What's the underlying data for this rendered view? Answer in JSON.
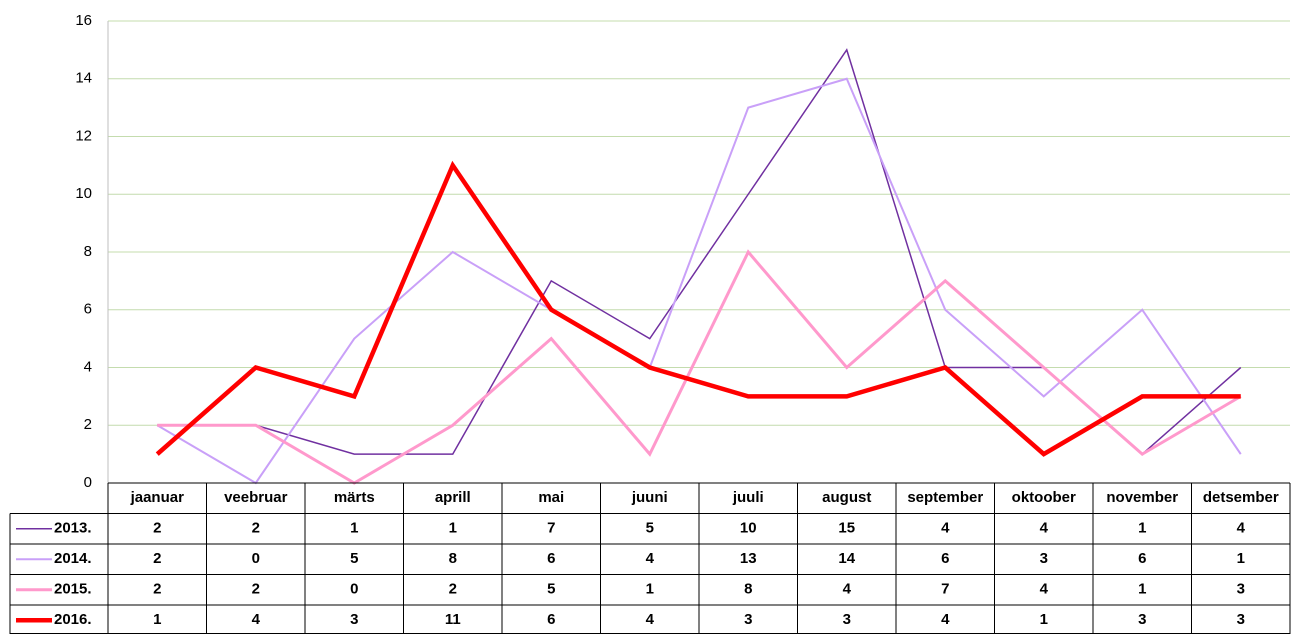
{
  "chart_data": {
    "type": "line",
    "categories": [
      "jaanuar",
      "veebruar",
      "märts",
      "aprill",
      "mai",
      "juuni",
      "juuli",
      "august",
      "september",
      "oktoober",
      "november",
      "detsember"
    ],
    "series": [
      {
        "name": "2013.",
        "color": "#7030a0",
        "line_width": 1.5,
        "values": [
          2,
          2,
          1,
          1,
          7,
          5,
          10,
          15,
          4,
          4,
          1,
          4
        ]
      },
      {
        "name": "2014.",
        "color": "#c9a0f8",
        "line_width": 2,
        "values": [
          2,
          0,
          5,
          8,
          6,
          4,
          13,
          14,
          6,
          3,
          6,
          1
        ]
      },
      {
        "name": "2015.",
        "color": "#ff99cc",
        "line_width": 3,
        "values": [
          2,
          2,
          0,
          2,
          5,
          1,
          8,
          4,
          7,
          4,
          1,
          3
        ]
      },
      {
        "name": "2016.",
        "color": "#ff0000",
        "line_width": 4.5,
        "values": [
          1,
          4,
          3,
          11,
          6,
          4,
          3,
          3,
          4,
          1,
          3,
          3
        ]
      }
    ],
    "ylim": [
      0,
      16
    ],
    "yticks": [
      0,
      2,
      4,
      6,
      8,
      10,
      12,
      14,
      16
    ],
    "grid": true,
    "data_table": true
  }
}
